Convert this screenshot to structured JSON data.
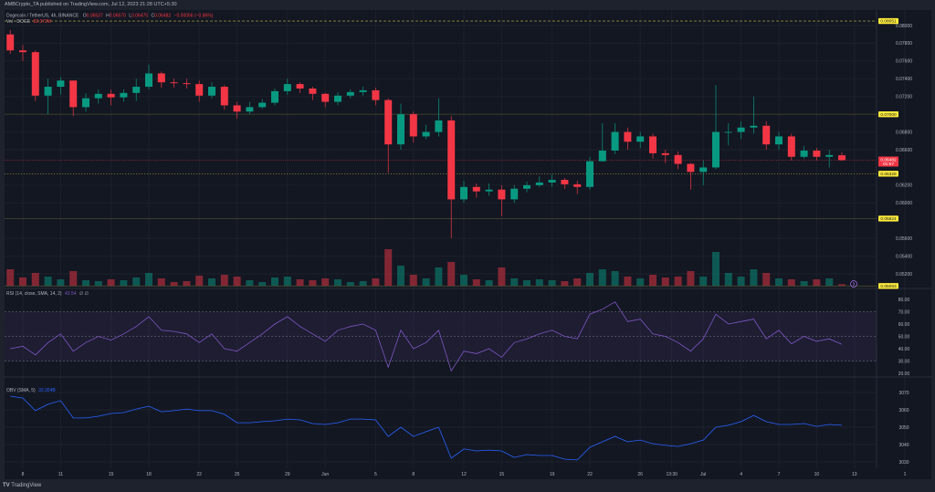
{
  "header": {
    "published": "AMBCrypto_TA published on TradingView.com, Jul 12, 2023 21:28 UTC+5:30"
  },
  "legend": {
    "symbol": "Dogecoin / TetherUS, 4h, BINANCE",
    "o_label": "O",
    "o": "0.06537",
    "h_label": "H",
    "h": "0.06570",
    "l_label": "L",
    "l": "0.06475",
    "c_label": "C",
    "c": "0.06482",
    "change": "−0.00056 (−0.86%)",
    "volume_label": "Vol · DOGE",
    "volume_value": "82.372M",
    "rsi_label": "RSI (14, close, SMA, 14, 2)",
    "rsi_value": "43.54",
    "rsi_extra": "∅ ∅",
    "obv_label": "OBV (SMA, 5)",
    "obv_value": "33.304B"
  },
  "colors": {
    "up": "#089981",
    "down": "#f23645",
    "rsi": "#7e57c2",
    "obv": "#2962ff",
    "level": "#ffeb3b",
    "background": "#131722"
  },
  "price_axis": {
    "ticks": [
      "0.08000",
      "0.07800",
      "0.07600",
      "0.07400",
      "0.07200",
      "0.06800",
      "0.06600",
      "0.06200",
      "0.06000",
      "0.05600",
      "0.05400",
      "0.05200"
    ],
    "levels": [
      {
        "value": "0.08051",
        "style": "dashed"
      },
      {
        "value": "0.07000",
        "style": "solid"
      },
      {
        "value": "0.06329",
        "style": "dotted"
      },
      {
        "value": "0.05824",
        "style": "solid"
      },
      {
        "value": "0.05063",
        "style": "solid"
      }
    ],
    "current_price": "0.06482",
    "countdown": "01:57"
  },
  "rsi_axis": {
    "ticks": [
      "80.00",
      "70.00",
      "60.00",
      "50.00",
      "40.00",
      "30.00",
      "20.00"
    ],
    "band": [
      30,
      70
    ],
    "mid": 50
  },
  "obv_axis": {
    "ticks": [
      "3070",
      "3060",
      "3050",
      "3040",
      "3030"
    ]
  },
  "time_axis": [
    {
      "label": "8",
      "date": "05-08"
    },
    {
      "label": "11",
      "date": "05-11"
    },
    {
      "label": "15",
      "date": "05-15"
    },
    {
      "label": "18",
      "date": "05-18"
    },
    {
      "label": "22",
      "date": "05-22"
    },
    {
      "label": "25",
      "date": "05-25"
    },
    {
      "label": "29",
      "date": "05-29"
    },
    {
      "label": "Jun",
      "date": "06-01"
    },
    {
      "label": "5",
      "date": "06-05"
    },
    {
      "label": "8",
      "date": "06-08"
    },
    {
      "label": "12",
      "date": "06-12"
    },
    {
      "label": "15",
      "date": "06-15"
    },
    {
      "label": "19",
      "date": "06-19"
    },
    {
      "label": "22",
      "date": "06-22"
    },
    {
      "label": "26",
      "date": "06-26"
    },
    {
      "label": "13:30",
      "date": "06-28.5"
    },
    {
      "label": "Jul",
      "date": "07-01"
    },
    {
      "label": "4",
      "date": "07-04"
    },
    {
      "label": "7",
      "date": "07-07"
    },
    {
      "label": "10",
      "date": "07-10"
    },
    {
      "label": "13",
      "date": "07-13"
    },
    {
      "label": "1",
      "date": "07-17"
    }
  ],
  "footer": {
    "brand": "TradingView"
  },
  "chart_data": {
    "type": "candlestick",
    "columns": [
      "date",
      "open",
      "high",
      "low",
      "close",
      "volume_M",
      "rsi",
      "obv"
    ],
    "candles": [
      [
        "05-07",
        0.079,
        0.0795,
        0.0768,
        0.0772,
        900,
        40,
        3067.9
      ],
      [
        "05-08",
        0.0772,
        0.0778,
        0.076,
        0.077,
        450,
        42,
        3066.8
      ],
      [
        "05-09",
        0.077,
        0.0772,
        0.0715,
        0.0721,
        700,
        35,
        3059.5
      ],
      [
        "05-10",
        0.0721,
        0.074,
        0.07,
        0.0731,
        500,
        45,
        3063.2
      ],
      [
        "05-11",
        0.0731,
        0.0742,
        0.0722,
        0.0738,
        350,
        52,
        3065.3
      ],
      [
        "05-12",
        0.0738,
        0.0738,
        0.0698,
        0.0708,
        800,
        38,
        3055.3
      ],
      [
        "05-13",
        0.0708,
        0.0724,
        0.0703,
        0.0718,
        300,
        45,
        3055.3
      ],
      [
        "05-14",
        0.0718,
        0.0728,
        0.0712,
        0.0723,
        250,
        50,
        3056.3
      ],
      [
        "05-15",
        0.0723,
        0.0728,
        0.071,
        0.0719,
        350,
        47,
        3057.9
      ],
      [
        "05-16",
        0.0719,
        0.0728,
        0.0714,
        0.0724,
        300,
        52,
        3058.4
      ],
      [
        "05-17",
        0.0724,
        0.074,
        0.0715,
        0.0731,
        450,
        58,
        3060.5
      ],
      [
        "05-18",
        0.0731,
        0.0756,
        0.0728,
        0.0746,
        700,
        66,
        3062.1
      ],
      [
        "05-19",
        0.0746,
        0.0748,
        0.073,
        0.0736,
        400,
        55,
        3058.9
      ],
      [
        "05-20",
        0.0736,
        0.074,
        0.073,
        0.0735,
        200,
        54,
        3059.5
      ],
      [
        "05-21",
        0.0735,
        0.074,
        0.0729,
        0.0734,
        250,
        52,
        3060.5
      ],
      [
        "05-22",
        0.0734,
        0.0738,
        0.0714,
        0.0721,
        550,
        45,
        3059.5
      ],
      [
        "05-23",
        0.0721,
        0.0736,
        0.0718,
        0.0731,
        400,
        52,
        3059.5
      ],
      [
        "05-24",
        0.0731,
        0.0733,
        0.0705,
        0.071,
        600,
        40,
        3057.4
      ],
      [
        "05-25",
        0.071,
        0.0714,
        0.0695,
        0.0703,
        500,
        38,
        3052.6
      ],
      [
        "05-26",
        0.0703,
        0.0714,
        0.07,
        0.0708,
        300,
        45,
        3052.6
      ],
      [
        "05-27",
        0.0708,
        0.0717,
        0.0706,
        0.0713,
        200,
        52,
        3053.2
      ],
      [
        "05-28",
        0.0713,
        0.0729,
        0.071,
        0.0726,
        450,
        60,
        3053.7
      ],
      [
        "05-29",
        0.0726,
        0.074,
        0.0722,
        0.0734,
        500,
        66,
        3054.7
      ],
      [
        "05-30",
        0.0734,
        0.0736,
        0.0724,
        0.0729,
        350,
        58,
        3054.2
      ],
      [
        "05-31",
        0.0729,
        0.0731,
        0.0716,
        0.0723,
        300,
        52,
        3052.1
      ],
      [
        "06-01",
        0.0723,
        0.0724,
        0.0708,
        0.0714,
        400,
        46,
        3051.6
      ],
      [
        "06-02",
        0.0714,
        0.0725,
        0.071,
        0.0721,
        350,
        55,
        3052.6
      ],
      [
        "06-03",
        0.0721,
        0.0728,
        0.0718,
        0.0725,
        200,
        58,
        3054.7
      ],
      [
        "06-04",
        0.0725,
        0.0731,
        0.0721,
        0.0727,
        250,
        60,
        3054.7
      ],
      [
        "06-05",
        0.0727,
        0.073,
        0.071,
        0.0716,
        400,
        55,
        3054.2
      ],
      [
        "06-06",
        0.0716,
        0.0718,
        0.0634,
        0.0666,
        2000,
        25,
        3044.7
      ],
      [
        "06-07",
        0.0666,
        0.0712,
        0.066,
        0.07,
        1100,
        55,
        3050.0
      ],
      [
        "06-08",
        0.07,
        0.0703,
        0.0668,
        0.0675,
        600,
        40,
        3044.7
      ],
      [
        "06-09",
        0.0675,
        0.0688,
        0.0672,
        0.068,
        400,
        45,
        3047.4
      ],
      [
        "06-10",
        0.068,
        0.0718,
        0.0675,
        0.0693,
        1000,
        55,
        3050.0
      ],
      [
        "06-11",
        0.0693,
        0.0698,
        0.056,
        0.0604,
        1300,
        22,
        3032.1
      ],
      [
        "06-12",
        0.0604,
        0.0625,
        0.06,
        0.0618,
        600,
        38,
        3037.4
      ],
      [
        "06-13",
        0.0618,
        0.0622,
        0.0606,
        0.0613,
        350,
        36,
        3036.3
      ],
      [
        "06-14",
        0.0613,
        0.0622,
        0.0608,
        0.0615,
        300,
        40,
        3036.8
      ],
      [
        "06-15",
        0.0615,
        0.062,
        0.0585,
        0.0604,
        1000,
        33,
        3036.3
      ],
      [
        "06-16",
        0.0604,
        0.062,
        0.06,
        0.0616,
        400,
        45,
        3032.6
      ],
      [
        "06-17",
        0.0616,
        0.0624,
        0.0612,
        0.062,
        300,
        48,
        3034.2
      ],
      [
        "06-18",
        0.062,
        0.063,
        0.0618,
        0.0623,
        350,
        52,
        3033.7
      ],
      [
        "06-19",
        0.0623,
        0.0632,
        0.0618,
        0.0626,
        300,
        55,
        3033.7
      ],
      [
        "06-20",
        0.0626,
        0.0628,
        0.0616,
        0.0621,
        250,
        50,
        3031.6
      ],
      [
        "06-21",
        0.0621,
        0.0625,
        0.061,
        0.0618,
        400,
        48,
        3031.1
      ],
      [
        "06-22",
        0.0618,
        0.0652,
        0.0615,
        0.0647,
        700,
        68,
        3038.4
      ],
      [
        "06-23",
        0.0647,
        0.069,
        0.065,
        0.0659,
        900,
        72,
        3041.6
      ],
      [
        "06-24",
        0.0659,
        0.069,
        0.0655,
        0.068,
        800,
        78,
        3044.7
      ],
      [
        "06-25",
        0.068,
        0.0685,
        0.066,
        0.0669,
        500,
        62,
        3041.6
      ],
      [
        "06-26",
        0.0669,
        0.068,
        0.0662,
        0.0675,
        400,
        64,
        3042.6
      ],
      [
        "06-27",
        0.0675,
        0.0678,
        0.065,
        0.0656,
        600,
        52,
        3040.5
      ],
      [
        "06-28",
        0.0656,
        0.066,
        0.0645,
        0.0654,
        450,
        50,
        3039.5
      ],
      [
        "06-29",
        0.0654,
        0.0658,
        0.0638,
        0.0644,
        500,
        45,
        3038.9
      ],
      [
        "06-30",
        0.0644,
        0.0645,
        0.0615,
        0.0635,
        800,
        38,
        3040.5
      ],
      [
        "07-01",
        0.0635,
        0.0648,
        0.062,
        0.064,
        500,
        48,
        3042.6
      ],
      [
        "07-02",
        0.064,
        0.0733,
        0.0638,
        0.068,
        1850,
        68,
        3050.0
      ],
      [
        "07-03",
        0.068,
        0.069,
        0.0665,
        0.068,
        700,
        60,
        3051.1
      ],
      [
        "07-04",
        0.068,
        0.0692,
        0.0672,
        0.0685,
        500,
        62,
        3053.2
      ],
      [
        "07-05",
        0.0685,
        0.072,
        0.0678,
        0.0687,
        900,
        64,
        3056.8
      ],
      [
        "07-06",
        0.0687,
        0.0692,
        0.066,
        0.0666,
        700,
        48,
        3053.2
      ],
      [
        "07-07",
        0.0666,
        0.068,
        0.066,
        0.0675,
        400,
        55,
        3051.6
      ],
      [
        "07-08",
        0.0675,
        0.0678,
        0.0648,
        0.0652,
        350,
        44,
        3051.6
      ],
      [
        "07-09",
        0.0652,
        0.0664,
        0.065,
        0.0659,
        250,
        50,
        3052.1
      ],
      [
        "07-10",
        0.0659,
        0.0662,
        0.0648,
        0.0652,
        350,
        46,
        3050.5
      ],
      [
        "07-11",
        0.0652,
        0.066,
        0.064,
        0.0654,
        400,
        48,
        3051.6
      ],
      [
        "07-12",
        0.06537,
        0.0657,
        0.06475,
        0.06482,
        82,
        43.54,
        3051.1
      ]
    ]
  }
}
